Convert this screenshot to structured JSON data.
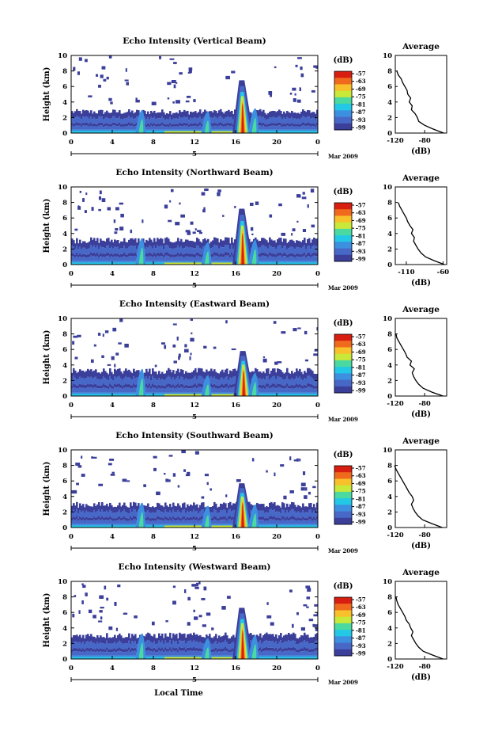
{
  "figure": {
    "x_axis_label": "Local Time",
    "date_label": "Mar 2009",
    "date_marker": "5",
    "time_ticks": [
      "0",
      "4",
      "8",
      "12",
      "16",
      "20",
      "0"
    ],
    "height_ticks": [
      "0",
      "2",
      "4",
      "6",
      "8",
      "10"
    ],
    "height_axis_label": "Height (km)",
    "colorbar_unit": "(dB)",
    "colorbar_ticks": [
      "-57",
      "-63",
      "-69",
      "-75",
      "-81",
      "-87",
      "-93",
      "-99"
    ],
    "colorbar_colors": [
      "#3b3f9a",
      "#4868c8",
      "#3d8fe0",
      "#22c8e6",
      "#4ad9a0",
      "#c8e83a",
      "#f8c02a",
      "#f06a1e",
      "#d81e10"
    ],
    "average_title": "Average",
    "average_xlabel": "(dB)"
  },
  "chart_data": [
    {
      "type": "heatmap",
      "title": "Echo Intensity (Vertical Beam)",
      "xlabel": "",
      "ylabel": "Height (km)",
      "xlim": [
        0,
        24
      ],
      "ylim": [
        0,
        10
      ],
      "x_units": "hours local time",
      "colorbar": {
        "label": "(dB)",
        "range": [
          -99,
          -57
        ]
      },
      "features": [
        {
          "name": "boundary layer echo",
          "x_range": [
            0,
            24
          ],
          "top_km": 2.8
        },
        {
          "name": "plume",
          "x_center": 6.8,
          "top_km": 3.0
        },
        {
          "name": "plume",
          "x_center": 13.2,
          "top_km": 2.8
        },
        {
          "name": "strong echo",
          "x_center": 16.7,
          "top_km": 6.8,
          "peak_dB": -57
        },
        {
          "name": "plume",
          "x_center": 17.8,
          "top_km": 3.2
        }
      ],
      "average_profile": {
        "title": "Average",
        "xlabel": "(dB)",
        "xlim": [
          -120,
          -50
        ],
        "x_ticks": [
          "-120",
          "-80"
        ],
        "height_km": [
          0,
          0.5,
          1,
          1.5,
          2,
          2.5,
          3,
          3.5,
          4,
          4.5,
          5,
          5.5,
          6,
          6.5,
          7,
          7.5,
          8
        ],
        "dB": [
          -54,
          -68,
          -80,
          -88,
          -90,
          -93,
          -98,
          -97,
          -101,
          -99,
          -103,
          -104,
          -107,
          -110,
          -112,
          -116,
          -118
        ]
      }
    },
    {
      "type": "heatmap",
      "title": "Echo Intensity (Northward Beam)",
      "xlabel": "",
      "ylabel": "Height (km)",
      "xlim": [
        0,
        24
      ],
      "ylim": [
        0,
        10
      ],
      "x_units": "hours local time",
      "colorbar": {
        "label": "(dB)",
        "range": [
          -99,
          -57
        ]
      },
      "features": [
        {
          "name": "boundary layer echo",
          "x_range": [
            0,
            24
          ],
          "top_km": 3.2
        },
        {
          "name": "plume",
          "x_center": 6.8,
          "top_km": 3.4
        },
        {
          "name": "plume",
          "x_center": 13.2,
          "top_km": 2.9
        },
        {
          "name": "strong echo",
          "x_center": 16.7,
          "top_km": 7.2,
          "peak_dB": -57
        },
        {
          "name": "plume",
          "x_center": 17.8,
          "top_km": 3.2
        }
      ],
      "average_profile": {
        "title": "Average",
        "xlabel": "(dB)",
        "xlim": [
          -125,
          -55
        ],
        "x_ticks": [
          "-110",
          "-60"
        ],
        "height_km": [
          0,
          0.5,
          1,
          1.5,
          2,
          2.5,
          3,
          3.5,
          4,
          4.5,
          5,
          5.5,
          6,
          6.5,
          7,
          7.5,
          8
        ],
        "dB": [
          -58,
          -72,
          -84,
          -90,
          -94,
          -97,
          -100,
          -99,
          -103,
          -101,
          -105,
          -108,
          -110,
          -113,
          -116,
          -119,
          -121
        ]
      }
    },
    {
      "type": "heatmap",
      "title": "Echo Intensity (Eastward Beam)",
      "xlabel": "",
      "ylabel": "Height (km)",
      "xlim": [
        0,
        24
      ],
      "ylim": [
        0,
        10
      ],
      "x_units": "hours local time",
      "colorbar": {
        "label": "(dB)",
        "range": [
          -99,
          -57
        ]
      },
      "features": [
        {
          "name": "boundary layer echo",
          "x_range": [
            0,
            24
          ],
          "top_km": 3.3
        },
        {
          "name": "plume",
          "x_center": 6.8,
          "top_km": 3.5
        },
        {
          "name": "plume",
          "x_center": 13.2,
          "top_km": 2.7
        },
        {
          "name": "strong echo",
          "x_center": 16.8,
          "top_km": 5.8,
          "peak_dB": -57
        },
        {
          "name": "plume",
          "x_center": 17.8,
          "top_km": 3.0
        }
      ],
      "average_profile": {
        "title": "Average",
        "xlabel": "(dB)",
        "xlim": [
          -120,
          -50
        ],
        "x_ticks": [
          "-120",
          "-80"
        ],
        "height_km": [
          0,
          0.5,
          1,
          1.5,
          2,
          2.5,
          3,
          3.5,
          4,
          4.5,
          5,
          5.5,
          6,
          6.5,
          7,
          7.5,
          8
        ],
        "dB": [
          -55,
          -70,
          -82,
          -88,
          -92,
          -95,
          -97,
          -94,
          -100,
          -98,
          -104,
          -106,
          -109,
          -112,
          -115,
          -118,
          -119
        ]
      }
    },
    {
      "type": "heatmap",
      "title": "Echo Intensity (Southward Beam)",
      "xlabel": "",
      "ylabel": "Height (km)",
      "xlim": [
        0,
        24
      ],
      "ylim": [
        0,
        10
      ],
      "x_units": "hours local time",
      "colorbar": {
        "label": "(dB)",
        "range": [
          -99,
          -57
        ]
      },
      "features": [
        {
          "name": "boundary layer echo",
          "x_range": [
            0,
            24
          ],
          "top_km": 3.0
        },
        {
          "name": "plume",
          "x_center": 6.8,
          "top_km": 3.2
        },
        {
          "name": "plume",
          "x_center": 13.2,
          "top_km": 2.8
        },
        {
          "name": "strong echo",
          "x_center": 16.7,
          "top_km": 5.7,
          "peak_dB": -57
        },
        {
          "name": "plume",
          "x_center": 17.8,
          "top_km": 3.0
        }
      ],
      "average_profile": {
        "title": "Average",
        "xlabel": "(dB)",
        "xlim": [
          -120,
          -50
        ],
        "x_ticks": [
          "-120",
          "-80"
        ],
        "height_km": [
          0,
          0.5,
          1,
          1.5,
          2,
          2.5,
          3,
          3.5,
          4,
          4.5,
          5,
          5.5,
          6,
          6.5,
          7,
          7.5,
          8
        ],
        "dB": [
          -56,
          -70,
          -83,
          -89,
          -93,
          -96,
          -98,
          -95,
          -97,
          -101,
          -104,
          -107,
          -110,
          -113,
          -116,
          -119,
          -121
        ]
      }
    },
    {
      "type": "heatmap",
      "title": "Echo Intensity (Westward Beam)",
      "xlabel": "Local Time",
      "ylabel": "Height (km)",
      "xlim": [
        0,
        24
      ],
      "ylim": [
        0,
        10
      ],
      "x_units": "hours local time",
      "colorbar": {
        "label": "(dB)",
        "range": [
          -99,
          -57
        ]
      },
      "features": [
        {
          "name": "boundary layer echo",
          "x_range": [
            0,
            24
          ],
          "top_km": 3.1
        },
        {
          "name": "plume",
          "x_center": 6.8,
          "top_km": 3.3
        },
        {
          "name": "plume",
          "x_center": 13.2,
          "top_km": 2.7
        },
        {
          "name": "strong echo",
          "x_center": 16.7,
          "top_km": 6.6,
          "peak_dB": -57
        },
        {
          "name": "plume",
          "x_center": 17.8,
          "top_km": 3.1
        }
      ],
      "average_profile": {
        "title": "Average",
        "xlabel": "(dB)",
        "xlim": [
          -120,
          -50
        ],
        "x_ticks": [
          "-120",
          "-80"
        ],
        "height_km": [
          0,
          0.5,
          1,
          1.5,
          2,
          2.5,
          3,
          3.5,
          4,
          4.5,
          5,
          5.5,
          6,
          6.5,
          7,
          7.5,
          8
        ],
        "dB": [
          -55,
          -69,
          -82,
          -88,
          -92,
          -95,
          -98,
          -96,
          -99,
          -101,
          -105,
          -107,
          -110,
          -113,
          -116,
          -118,
          -119
        ]
      }
    }
  ]
}
